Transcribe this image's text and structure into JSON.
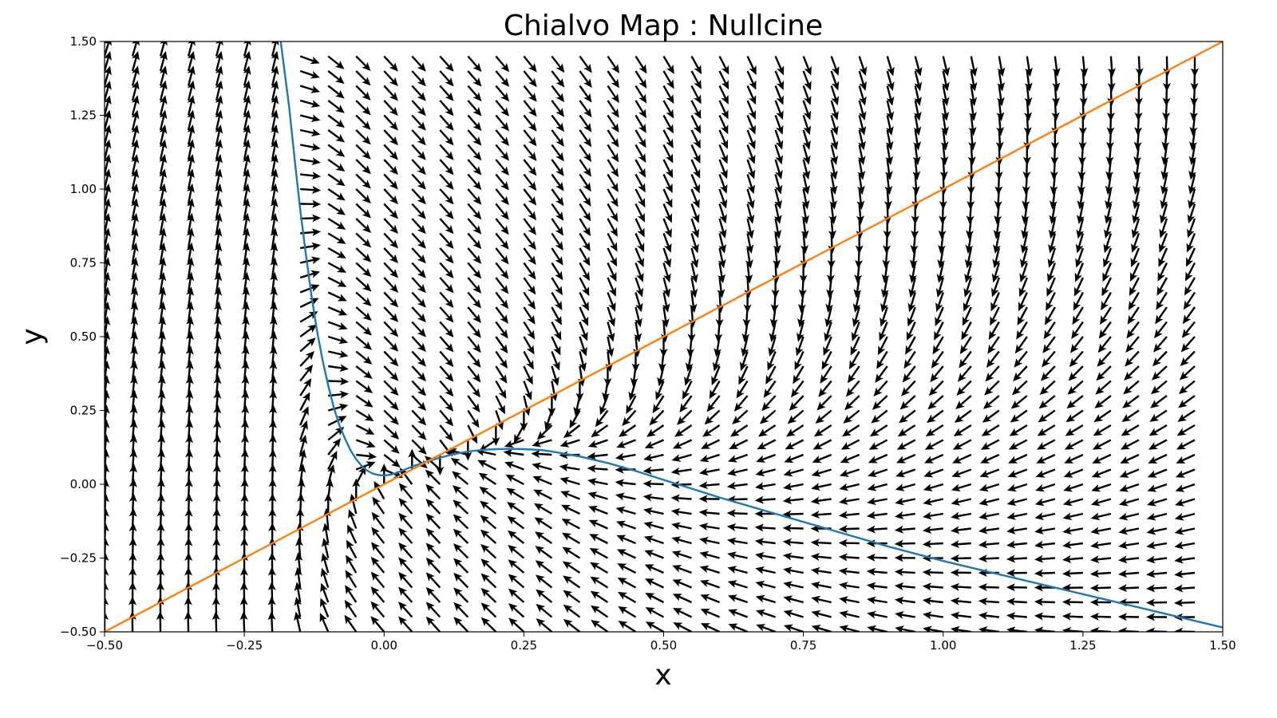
{
  "chart_data": {
    "type": "quiver",
    "title": "Chialvo Map : Nullcine",
    "xlabel": "x",
    "ylabel": "y",
    "xlim": [
      -0.5,
      1.5
    ],
    "ylim": [
      -0.5,
      1.5
    ],
    "grid": false,
    "xticks": [
      -0.5,
      -0.25,
      0.0,
      0.25,
      0.5,
      0.75,
      1.0,
      1.25,
      1.5
    ],
    "xtick_labels": [
      "−0.50",
      "−0.25",
      "0.00",
      "0.25",
      "0.50",
      "0.75",
      "1.00",
      "1.25",
      "1.50"
    ],
    "yticks": [
      -0.5,
      -0.25,
      0.0,
      0.25,
      0.5,
      0.75,
      1.0,
      1.25,
      1.5
    ],
    "ytick_labels": [
      "−0.50",
      "−0.25",
      "0.00",
      "0.25",
      "0.50",
      "0.75",
      "1.00",
      "1.25",
      "1.50"
    ],
    "vector_field": {
      "x_grid": {
        "start": -0.5,
        "stop": 1.45,
        "step": 0.05
      },
      "y_grid": {
        "start": -0.5,
        "stop": 1.45,
        "step": 0.05
      },
      "color": "#000000",
      "normalized": true
    },
    "series": [
      {
        "color": "#1f77b4",
        "x": [
          -0.185,
          -0.17,
          -0.16,
          -0.15,
          -0.14,
          -0.13,
          -0.12,
          -0.11,
          -0.1,
          -0.09,
          -0.08,
          -0.07,
          -0.06,
          -0.05,
          -0.04,
          -0.03,
          -0.02,
          -0.01,
          0.0,
          0.01,
          0.02,
          0.03,
          0.05,
          0.08,
          0.1,
          0.12,
          0.15,
          0.18,
          0.2,
          0.23,
          0.25,
          0.28,
          0.3,
          0.35,
          0.4,
          0.45,
          0.5,
          0.55,
          0.6,
          0.7,
          0.8,
          0.9,
          1.0,
          1.1,
          1.2,
          1.3,
          1.4,
          1.5
        ],
        "y": [
          1.5,
          1.28,
          1.1,
          0.93,
          0.78,
          0.64,
          0.52,
          0.42,
          0.335,
          0.26,
          0.2,
          0.155,
          0.115,
          0.085,
          0.062,
          0.046,
          0.036,
          0.031,
          0.03,
          0.032,
          0.037,
          0.044,
          0.06,
          0.079,
          0.09,
          0.1,
          0.111,
          0.117,
          0.119,
          0.12,
          0.119,
          0.116,
          0.111,
          0.094,
          0.072,
          0.045,
          0.015,
          -0.015,
          -0.045,
          -0.1,
          -0.155,
          -0.21,
          -0.26,
          -0.305,
          -0.35,
          -0.395,
          -0.44,
          -0.485
        ]
      },
      {
        "color": "#ff7f0e",
        "x": [
          -0.5,
          1.5
        ],
        "y": [
          -0.5,
          1.5
        ]
      }
    ]
  }
}
